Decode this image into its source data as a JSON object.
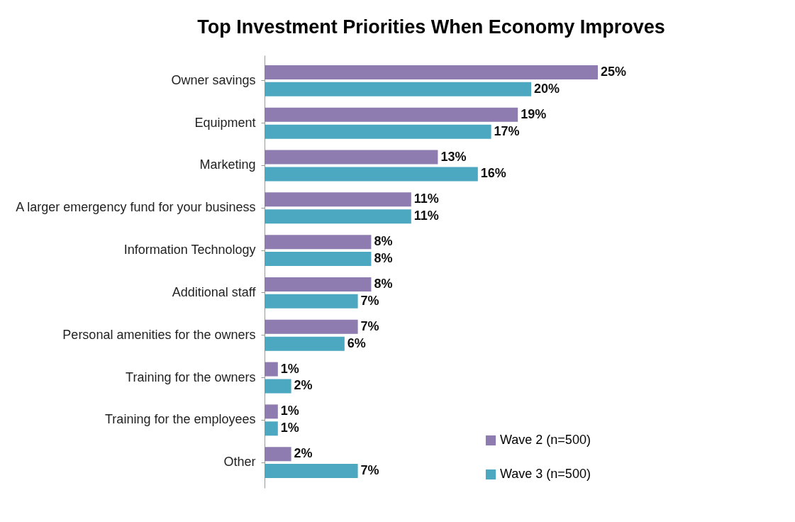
{
  "chart_data": {
    "type": "bar",
    "orientation": "horizontal",
    "title": "Top Investment Priorities When Economy Improves",
    "categories": [
      "Owner savings",
      "Equipment",
      "Marketing",
      "A larger emergency fund for your business",
      "Information Technology",
      "Additional staff",
      "Personal amenities for the owners",
      "Training for the owners",
      "Training for the employees",
      "Other"
    ],
    "series": [
      {
        "name": "Wave 2 (n=500)",
        "color": "#8e7cb0",
        "values": [
          25,
          19,
          13,
          11,
          8,
          8,
          7,
          1,
          1,
          2
        ],
        "value_labels": [
          "25%",
          "19%",
          "13%",
          "11%",
          "8%",
          "8%",
          "7%",
          "1%",
          "1%",
          "2%"
        ]
      },
      {
        "name": "Wave 3 (n=500)",
        "color": "#4ba8c0",
        "values": [
          20,
          17,
          16,
          11,
          8,
          7,
          6,
          2,
          1,
          7
        ],
        "value_labels": [
          "20%",
          "17%",
          "16%",
          "11%",
          "8%",
          "7%",
          "6%",
          "2%",
          "1%",
          "7%"
        ]
      }
    ],
    "legend": "bottom right"
  }
}
